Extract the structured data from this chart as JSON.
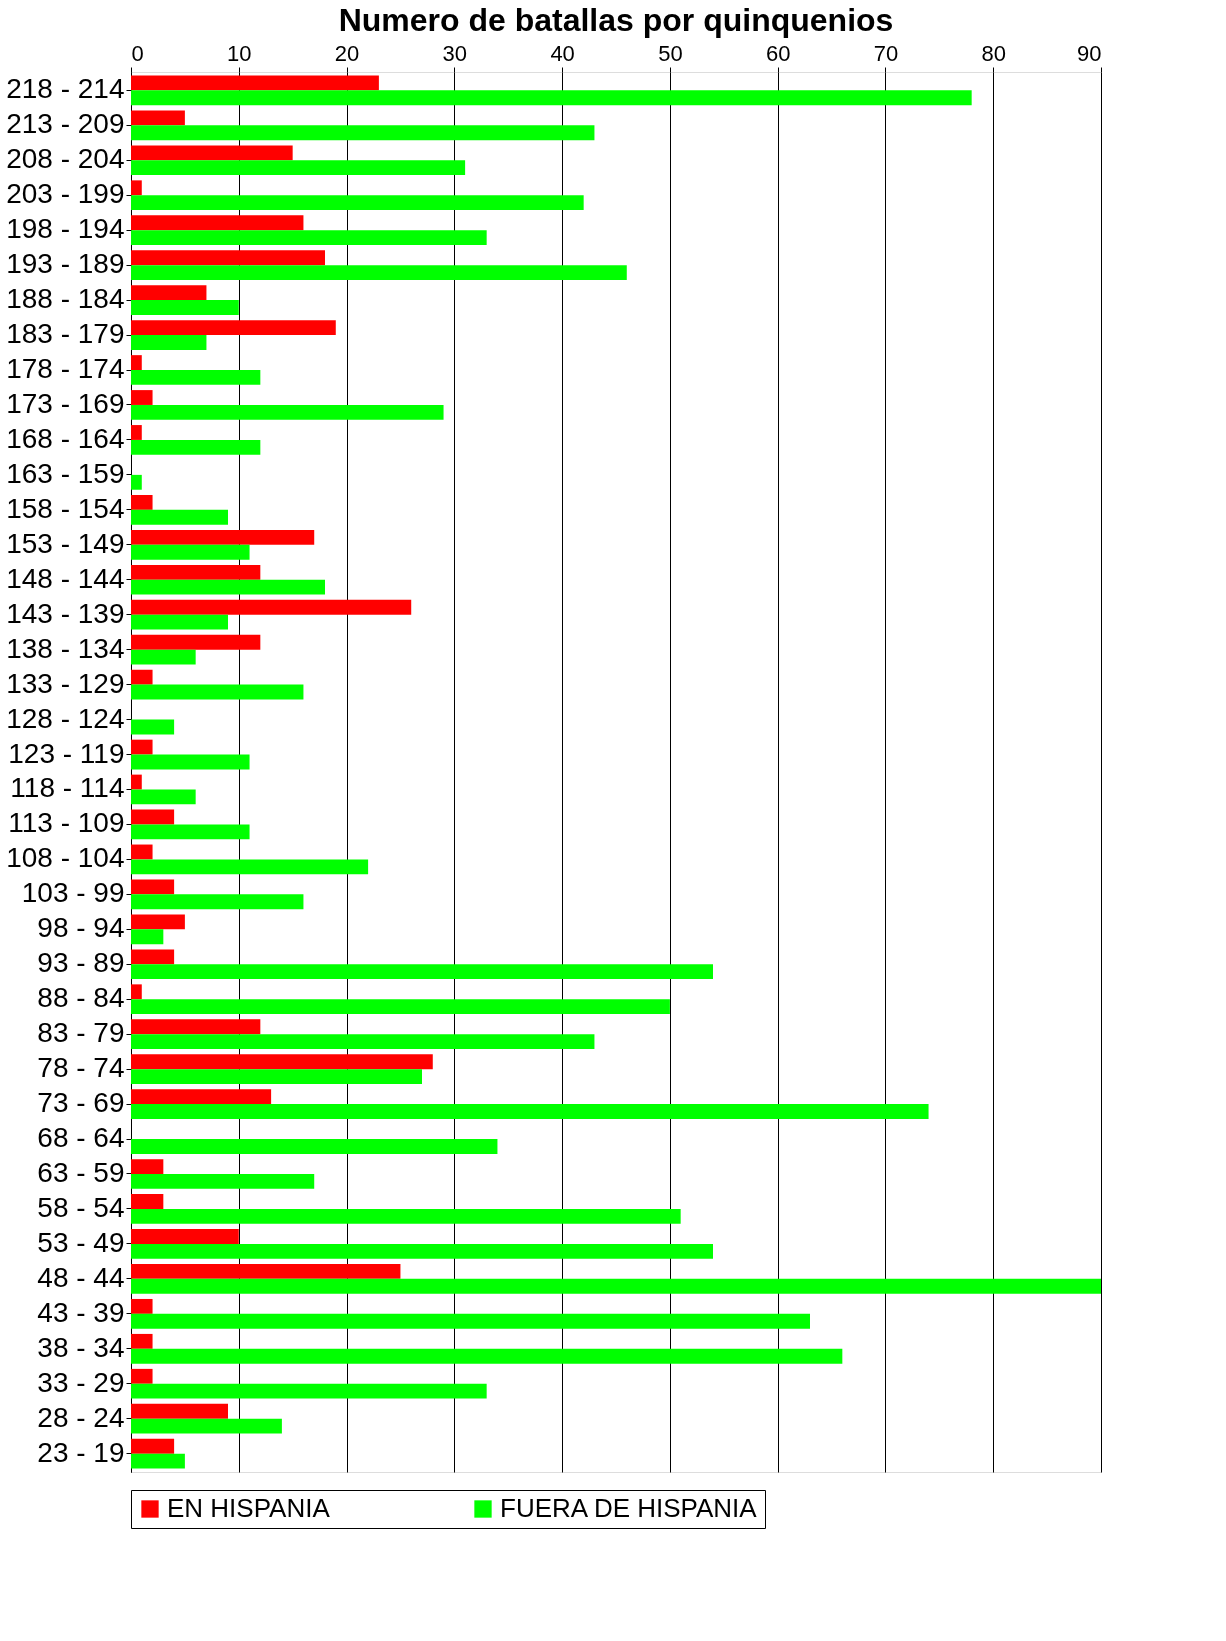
{
  "chart_data": {
    "type": "bar",
    "orientation": "horizontal",
    "title": "Numero de batallas por quinquenios",
    "categories": [
      "218 - 214",
      "213 - 209",
      "208 - 204",
      "203 - 199",
      "198 - 194",
      "193 - 189",
      "188 - 184",
      "183 - 179",
      "178 - 174",
      "173 - 169",
      "168 - 164",
      "163 - 159",
      "158 - 154",
      "153 - 149",
      "148 - 144",
      "143 - 139",
      "138 - 134",
      "133 - 129",
      "128 - 124",
      "123 - 119",
      "118 - 114",
      "113 - 109",
      "108 - 104",
      "103 - 99",
      "98 - 94",
      "93 - 89",
      "88 - 84",
      "83 - 79",
      "78 - 74",
      "73 - 69",
      "68 - 64",
      "63 - 59",
      "58 - 54",
      "53 - 49",
      "48 - 44",
      "43 - 39",
      "38 - 34",
      "33 - 29",
      "28 - 24",
      "23 - 19"
    ],
    "series": [
      {
        "name": "EN HISPANIA",
        "color": "#ff0000",
        "values": [
          23,
          5,
          15,
          1,
          16,
          18,
          7,
          19,
          1,
          2,
          1,
          0,
          2,
          17,
          12,
          26,
          12,
          2,
          0,
          2,
          1,
          4,
          2,
          4,
          5,
          4,
          1,
          12,
          28,
          13,
          0,
          3,
          3,
          10,
          25,
          2,
          2,
          2,
          9,
          4
        ]
      },
      {
        "name": "FUERA DE HISPANIA",
        "color": "#00ff00",
        "values": [
          78,
          43,
          31,
          42,
          33,
          46,
          10,
          7,
          12,
          29,
          12,
          1,
          9,
          11,
          18,
          9,
          6,
          16,
          4,
          11,
          6,
          11,
          22,
          16,
          3,
          54,
          50,
          43,
          27,
          74,
          34,
          17,
          51,
          54,
          90,
          63,
          66,
          33,
          14,
          5
        ]
      }
    ],
    "xlim": [
      0,
      90
    ],
    "xticks": [
      0,
      10,
      20,
      30,
      40,
      50,
      60,
      70,
      80,
      90
    ],
    "grid": "x",
    "legend": "bottom"
  }
}
